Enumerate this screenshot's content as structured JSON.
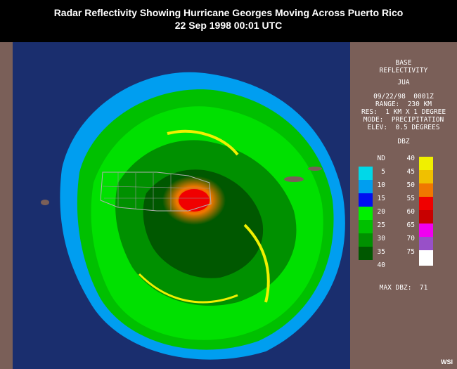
{
  "title": {
    "line1": "Radar Reflectivity Showing Hurricane Georges Moving Across Puerto Rico",
    "line2": "22 Sep 1998 00:01 UTC"
  },
  "panel": {
    "product_line1": "BASE",
    "product_line2": "REFLECTIVITY",
    "station": "JUA",
    "datetime": "09/22/98  0001Z",
    "range": "RANGE:  230 KM",
    "resolution": "RES:  1 KM X 1 DEGREE",
    "mode": "MODE:  PRECIPITATION",
    "elevation": "ELEV:  0.5 DEGREES",
    "units": "DBZ",
    "max_dbz": "MAX DBZ:  71"
  },
  "legend": {
    "left": [
      {
        "label": "ND",
        "color": ""
      },
      {
        "label": "5",
        "color": "#00d8e8"
      },
      {
        "label": "10",
        "color": "#009ef0"
      },
      {
        "label": "15",
        "color": "#0010f0"
      },
      {
        "label": "20",
        "color": "#00f000"
      },
      {
        "label": "25",
        "color": "#00c000"
      },
      {
        "label": "30",
        "color": "#009000"
      },
      {
        "label": "35",
        "color": "#005800"
      },
      {
        "label": "40",
        "color": ""
      }
    ],
    "right": [
      {
        "label": "40",
        "color": "#f0f000"
      },
      {
        "label": "45",
        "color": "#f0c000"
      },
      {
        "label": "50",
        "color": "#f07800"
      },
      {
        "label": "55",
        "color": "#f00000"
      },
      {
        "label": "60",
        "color": "#c80000"
      },
      {
        "label": "65",
        "color": "#f000f0"
      },
      {
        "label": "70",
        "color": "#9850c8"
      },
      {
        "label": "75",
        "color": "#ffffff"
      }
    ]
  },
  "credit": "WSI"
}
